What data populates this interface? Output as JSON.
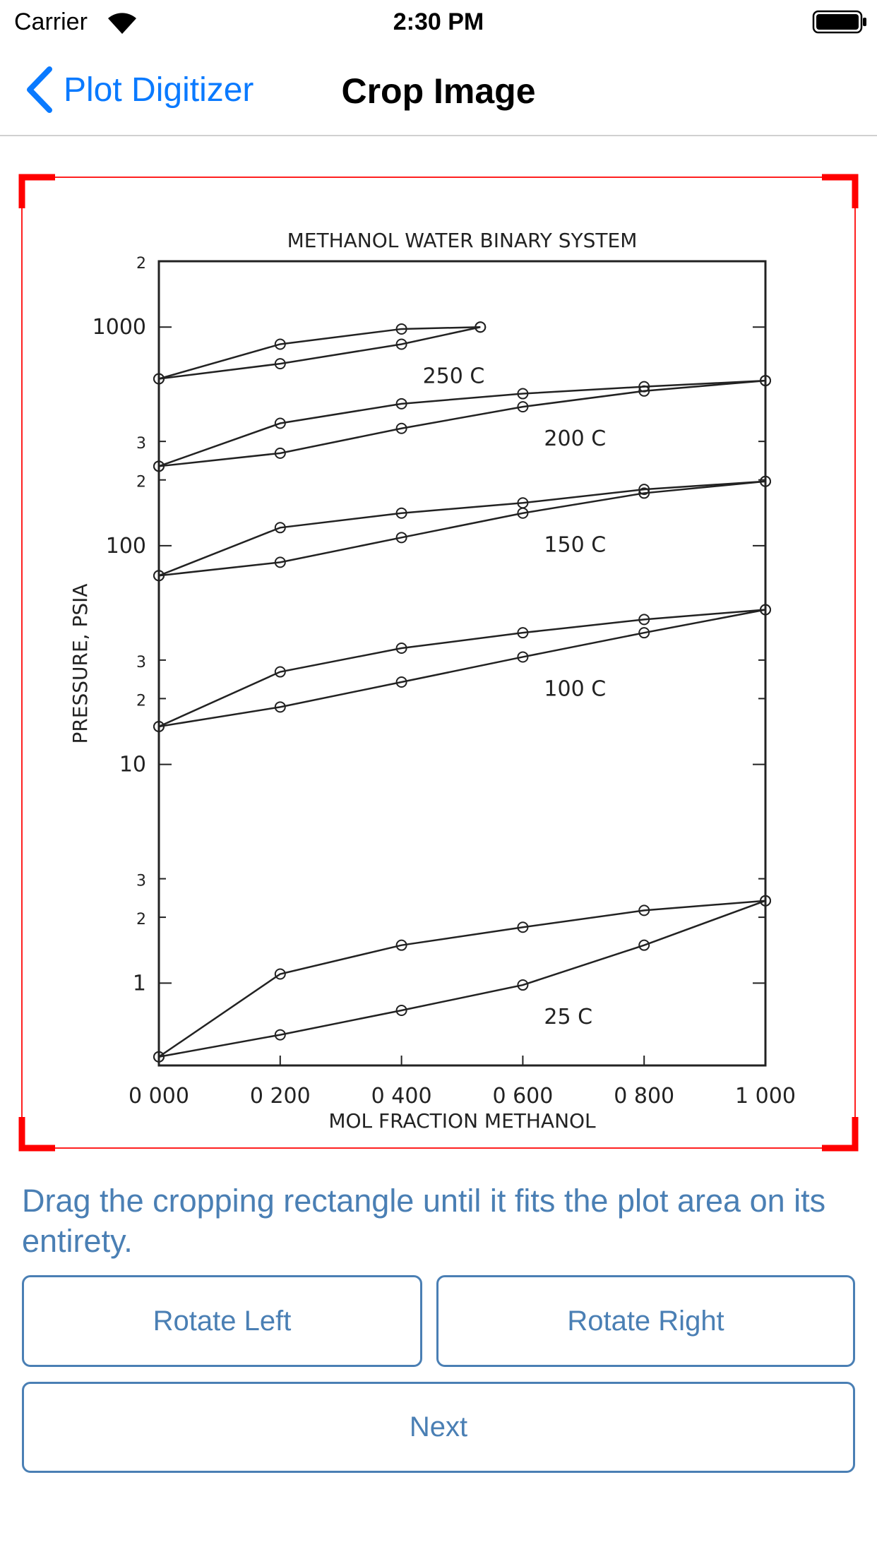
{
  "status_bar": {
    "carrier": "Carrier",
    "time": "2:30 PM"
  },
  "nav": {
    "back": "Plot Digitizer",
    "title": "Crop Image"
  },
  "image": {
    "chart_data": {
      "type": "line",
      "title": "METHANOL WATER BINARY SYSTEM",
      "x_label": "MOL FRACTION METHANOL",
      "y_label": "PRESSURE, PSIA",
      "log_y": true,
      "xlim": [
        0,
        1
      ],
      "ylim": [
        0.42,
        2000
      ],
      "xticks": [
        {
          "value": 0,
          "label": "0 000"
        },
        {
          "value": 0.2,
          "label": "0 200"
        },
        {
          "value": 0.4,
          "label": "0 400"
        },
        {
          "value": 0.6,
          "label": "0 600"
        },
        {
          "value": 0.8,
          "label": "0 800"
        },
        {
          "value": 1,
          "label": "1 000"
        }
      ],
      "yticks": [
        1,
        2,
        3,
        10,
        {
          "value": 20,
          "label": "2"
        },
        {
          "value": 30,
          "label": "3"
        },
        100,
        {
          "value": 200,
          "label": "2"
        },
        {
          "value": 300,
          "label": "3"
        },
        1000,
        {
          "value": 2000,
          "label": "2"
        }
      ],
      "series": [
        {
          "name": "250 C",
          "color": "#222222",
          "x": [
            0,
            0.2,
            0.4,
            0.53
          ],
          "upper": [
            580,
            835,
            980,
            1000
          ],
          "lower": [
            580,
            680,
            835,
            1000
          ]
        },
        {
          "name": "200 C",
          "color": "#222222",
          "x": [
            0,
            0.2,
            0.4,
            0.6,
            0.8,
            1
          ],
          "upper": [
            231,
            363,
            446,
            496,
            534,
            569
          ],
          "lower": [
            231,
            265,
            344,
            432,
            510,
            569
          ]
        },
        {
          "name": "150 C",
          "color": "#222222",
          "x": [
            0,
            0.2,
            0.4,
            0.6,
            0.8,
            1
          ],
          "upper": [
            73,
            121,
            141,
            157,
            181,
            197
          ],
          "lower": [
            73,
            84,
            109,
            141,
            174,
            197
          ]
        },
        {
          "name": "100 C",
          "color": "#222222",
          "x": [
            0,
            0.2,
            0.4,
            0.6,
            0.8,
            1
          ],
          "upper": [
            14.9,
            26.5,
            34,
            40,
            46,
            51
          ],
          "lower": [
            14.9,
            18.3,
            23.8,
            31,
            40,
            51
          ]
        },
        {
          "name": "25 C",
          "color": "#222222",
          "x": [
            0,
            0.2,
            0.4,
            0.6,
            0.8,
            1
          ],
          "upper": [
            0.46,
            1.1,
            1.49,
            1.8,
            2.15,
            2.38
          ],
          "lower": [
            0.46,
            0.58,
            0.75,
            0.98,
            1.49,
            2.38
          ]
        }
      ]
    }
  },
  "instructions": "Drag the cropping rectangle until it fits the plot area on its entirety.",
  "buttons": {
    "rotate_left": "Rotate Left",
    "rotate_right": "Rotate Right",
    "next": "Next"
  }
}
